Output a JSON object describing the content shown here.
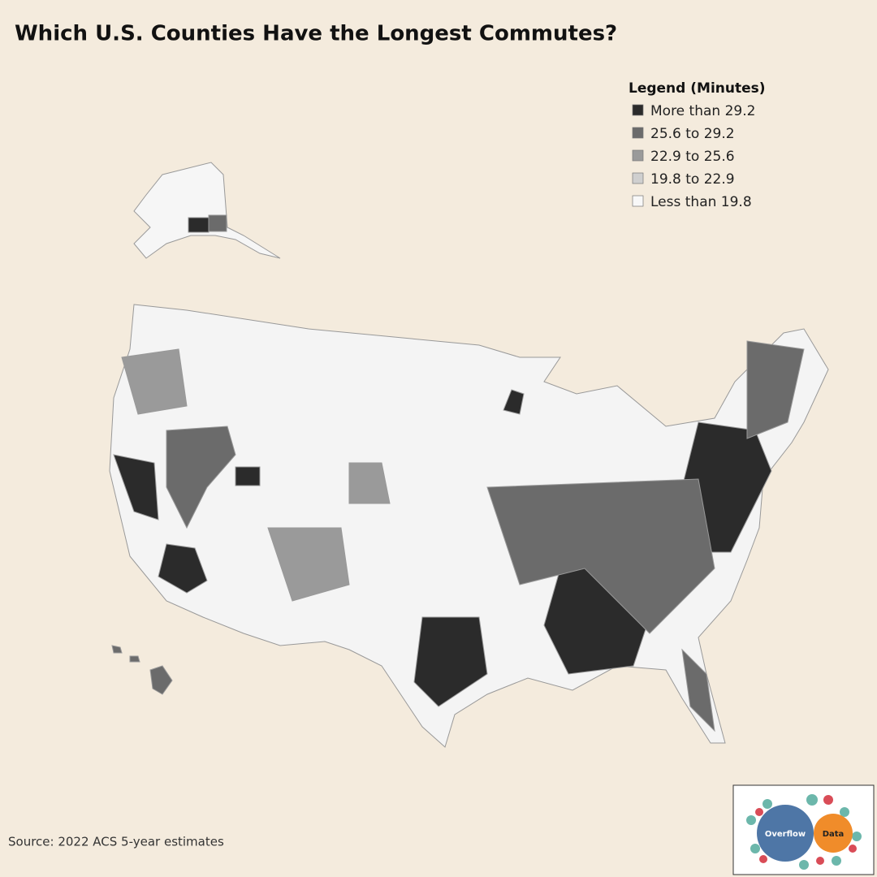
{
  "header": {
    "title": "Which U.S. Counties Have the Longest Commutes?"
  },
  "legend": {
    "title": "Legend (Minutes)",
    "items": [
      {
        "label": "More than 29.2",
        "color": "#2b2b2b"
      },
      {
        "label": "25.6 to 29.2",
        "color": "#6b6b6b"
      },
      {
        "label": "22.9 to 25.6",
        "color": "#9a9a9a"
      },
      {
        "label": "19.8 to 22.9",
        "color": "#cfcfcf"
      },
      {
        "label": "Less than 19.8",
        "color": "#f8f8f8"
      }
    ]
  },
  "footer": {
    "source": "Source: 2022 ACS 5-year estimates"
  },
  "logo": {
    "left": "Overflow",
    "right": "Data"
  }
}
